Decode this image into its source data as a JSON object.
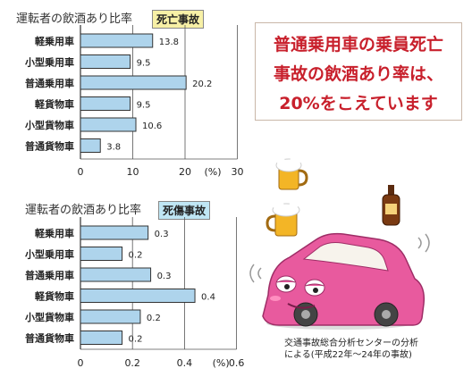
{
  "callout": {
    "lines": [
      "普通乗用車の乗員死亡",
      "事故の飲酒あり率は、",
      "20%をこえています"
    ]
  },
  "source": {
    "line1": "交通事故総合分析センターの分析",
    "line2": "による(平成22年～24年の事故)"
  },
  "colors": {
    "bar_fill": "#aed4ec",
    "bar_stroke": "#333333",
    "callout_text": "#c8202c",
    "tag1_bg": "#f7f0a6",
    "tag2_bg": "#bfe6f4"
  },
  "chart_data": [
    {
      "type": "bar",
      "orientation": "horizontal",
      "title": "運転者の飲酒あり比率",
      "tag": "死亡事故",
      "categories": [
        "軽乗用車",
        "小型乗用車",
        "普通乗用車",
        "軽貨物車",
        "小型貨物車",
        "普通貨物車"
      ],
      "values": [
        13.8,
        9.5,
        20.2,
        9.5,
        10.6,
        3.8
      ],
      "value_labels": [
        "13.8",
        "9.5",
        "20.2",
        "9.5",
        "10.6",
        "3.8"
      ],
      "xlim": [
        0,
        30
      ],
      "xticks": [
        "0",
        "10",
        "20",
        "(%)",
        "30"
      ],
      "grid": true
    },
    {
      "type": "bar",
      "orientation": "horizontal",
      "title": "運転者の飲酒あり比率",
      "tag": "死傷事故",
      "categories": [
        "軽乗用車",
        "小型乗用車",
        "普通乗用車",
        "軽貨物車",
        "小型貨物車",
        "普通貨物車"
      ],
      "values": [
        0.26,
        0.16,
        0.27,
        0.44,
        0.23,
        0.16
      ],
      "value_labels": [
        "0.3",
        "0.2",
        "0.3",
        "0.4",
        "0.2",
        "0.2"
      ],
      "xlim": [
        0,
        0.6
      ],
      "xticks": [
        "0",
        "0.2",
        "0.4",
        "(%)",
        "0.6"
      ],
      "grid": true
    }
  ]
}
